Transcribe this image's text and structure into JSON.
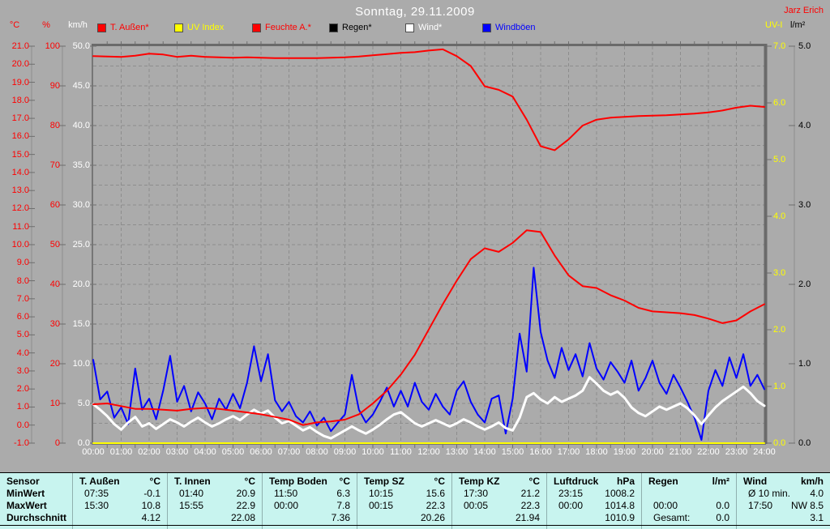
{
  "window": {
    "title": "Sonntag, 29.11.2009",
    "author": "Jarz Erich"
  },
  "colors": {
    "background": "#ababab",
    "grid": "#8d8d8d",
    "tick": "#6e6e6e",
    "border": "#767676",
    "border_dark": "#6a6a6a",
    "title": "#ffffff",
    "author": "#ff0000",
    "time_labels": "#ffffff",
    "table_bg": "#c8f4ef",
    "table_separator": "#8fb0ae"
  },
  "legend": [
    {
      "key": "temp_out",
      "label": "T. Außen*",
      "color": "#ff0000"
    },
    {
      "key": "uv",
      "label": "UV Index",
      "color": "#ffff00"
    },
    {
      "key": "humidity",
      "label": "Feuchte A.*",
      "color": "#ff0000"
    },
    {
      "key": "rain",
      "label": "Regen*",
      "color": "#000000"
    },
    {
      "key": "wind",
      "label": "Wind*",
      "color": "#ffffff"
    },
    {
      "key": "gusts",
      "label": "Windböen",
      "color": "#0000ff"
    }
  ],
  "chart_data": {
    "type": "line",
    "title": "Sonntag, 29.11.2009",
    "x_axis": {
      "unit": "h",
      "min": 0,
      "max": 24,
      "tick_step_hours": 1,
      "minor_tick_hours": 0.5
    },
    "grid": {
      "horizontal_divisions": 20,
      "vertical_per_hour": true,
      "style": "dashed"
    },
    "axes": {
      "left": [
        {
          "key": "temp",
          "unit": "°C",
          "color": "#ff0000",
          "min": -1,
          "max": 21,
          "ticks": [
            "21.0",
            "20.0",
            "19.0",
            "18.0",
            "17.0",
            "16.0",
            "15.0",
            "14.0",
            "13.0",
            "12.0",
            "11.0",
            "10.0",
            "9.0",
            "8.0",
            "7.0",
            "6.0",
            "5.0",
            "4.0",
            "3.0",
            "2.0",
            "1.0",
            "0.0",
            "-1.0"
          ]
        },
        {
          "key": "humidity",
          "unit": "%",
          "color": "#ff0000",
          "min": 0,
          "max": 100,
          "ticks": [
            "100",
            "90",
            "80",
            "70",
            "60",
            "50",
            "40",
            "30",
            "20",
            "10",
            "0"
          ]
        },
        {
          "key": "wind",
          "unit": "km/h",
          "color": "#ffffff",
          "min": 0,
          "max": 50,
          "ticks": [
            "50.0",
            "45.0",
            "40.0",
            "35.0",
            "30.0",
            "25.0",
            "20.0",
            "15.0",
            "10.0",
            "5.0",
            "0.0"
          ]
        }
      ],
      "right": [
        {
          "key": "uv",
          "unit": "UV-I",
          "color": "#ffff00",
          "min": 0,
          "max": 7,
          "ticks": [
            "7.0",
            "6.0",
            "5.0",
            "4.0",
            "3.0",
            "2.0",
            "1.0",
            "0.0"
          ]
        },
        {
          "key": "rain",
          "unit": "l/m²",
          "color": "#000000",
          "min": 0,
          "max": 5,
          "ticks": [
            "5.0",
            "4.0",
            "3.0",
            "2.0",
            "1.0",
            "0.0"
          ]
        }
      ],
      "time": {
        "labels": [
          "00:00",
          "01:00",
          "02:00",
          "03:00",
          "04:00",
          "05:00",
          "06:00",
          "07:00",
          "08:00",
          "09:00",
          "10:00",
          "11:00",
          "12:00",
          "13:00",
          "14:00",
          "15:00",
          "16:00",
          "17:00",
          "18:00",
          "19:00",
          "20:00",
          "21:00",
          "22:00",
          "23:00",
          "24:00"
        ]
      }
    },
    "series": [
      {
        "key": "rain",
        "name": "Regen",
        "axis": "rain",
        "color": "#000000",
        "width": 1,
        "z": 0,
        "t0": 0,
        "dt": 24,
        "values": [
          0,
          0
        ]
      },
      {
        "key": "gusts",
        "name": "Windböen",
        "axis": "wind",
        "color": "#0000ff",
        "width": 2,
        "z": 1,
        "t0": 0,
        "dt": 0.25,
        "values": [
          10.5,
          5.5,
          6.5,
          3.2,
          4.5,
          2.4,
          9.4,
          4.2,
          5.6,
          3.0,
          6.6,
          11.0,
          5.2,
          7.2,
          4.0,
          6.4,
          5.0,
          3.0,
          5.6,
          4.2,
          6.2,
          4.4,
          7.6,
          12.2,
          7.8,
          11.2,
          5.4,
          4.0,
          5.2,
          3.4,
          2.6,
          4.0,
          2.2,
          3.2,
          1.5,
          2.6,
          3.6,
          8.6,
          4.2,
          2.6,
          3.6,
          5.2,
          7.0,
          4.6,
          6.6,
          4.6,
          7.6,
          5.2,
          4.2,
          6.2,
          4.6,
          3.6,
          6.6,
          7.8,
          5.2,
          3.6,
          2.6,
          5.6,
          6.0,
          1.2,
          5.6,
          13.8,
          9.0,
          22.1,
          14.0,
          10.4,
          8.2,
          12.0,
          9.2,
          11.2,
          8.4,
          12.6,
          9.4,
          8.0,
          10.2,
          9.0,
          7.6,
          10.4,
          6.6,
          8.2,
          10.4,
          7.6,
          6.2,
          8.6,
          7.0,
          5.2,
          3.2,
          0.4,
          6.6,
          9.2,
          7.2,
          10.8,
          8.2,
          11.2,
          7.2,
          8.6,
          6.8
        ]
      },
      {
        "key": "uv",
        "name": "UV Index",
        "axis": "uv",
        "color": "#ffff00",
        "width": 2,
        "z": 2,
        "t0": 0,
        "dt": 24,
        "values": [
          0,
          0
        ]
      },
      {
        "key": "wind",
        "name": "Wind",
        "axis": "wind",
        "color": "#ffffff",
        "width": 3,
        "z": 3,
        "t0": 0,
        "dt": 0.25,
        "values": [
          4.9,
          4.2,
          3.4,
          2.4,
          1.7,
          2.6,
          3.3,
          2.1,
          2.5,
          1.8,
          2.4,
          3.0,
          2.6,
          2.1,
          2.7,
          3.2,
          2.6,
          2.1,
          2.5,
          3.0,
          3.4,
          2.9,
          3.6,
          4.2,
          3.7,
          4.1,
          3.2,
          2.5,
          2.8,
          2.2,
          1.6,
          2.0,
          1.4,
          0.9,
          0.6,
          1.1,
          1.6,
          2.1,
          1.6,
          1.2,
          1.7,
          2.3,
          3.0,
          3.6,
          3.9,
          3.2,
          2.5,
          2.1,
          2.5,
          2.9,
          2.5,
          2.1,
          2.5,
          3.0,
          2.6,
          2.1,
          1.7,
          2.1,
          2.6,
          1.9,
          1.6,
          3.2,
          5.8,
          6.3,
          5.5,
          5.0,
          5.8,
          5.2,
          5.6,
          6.0,
          6.6,
          8.3,
          7.5,
          6.6,
          6.1,
          6.5,
          5.7,
          4.5,
          3.8,
          3.4,
          4.0,
          4.6,
          4.2,
          4.6,
          5.0,
          4.4,
          3.5,
          2.4,
          3.5,
          4.5,
          5.3,
          5.9,
          6.5,
          7.1,
          6.3,
          5.3,
          4.7
        ]
      },
      {
        "key": "temp_out",
        "name": "T. Außen",
        "axis": "temp",
        "color": "#ff0000",
        "width": 2,
        "z": 4,
        "t0": 0,
        "dt": 0.5,
        "values": [
          1.15,
          1.2,
          1.05,
          0.9,
          0.9,
          0.85,
          0.8,
          0.9,
          0.95,
          0.9,
          0.8,
          0.7,
          0.6,
          0.45,
          0.3,
          0.0,
          0.15,
          0.2,
          0.3,
          0.6,
          1.2,
          1.9,
          2.8,
          3.9,
          5.3,
          6.7,
          8.0,
          9.2,
          9.8,
          9.6,
          10.1,
          10.8,
          10.7,
          9.4,
          8.3,
          7.7,
          7.6,
          7.2,
          6.9,
          6.5,
          6.3,
          6.25,
          6.2,
          6.1,
          5.9,
          5.65,
          5.8,
          6.3,
          6.7
        ]
      },
      {
        "key": "humidity",
        "name": "Feuchte A.",
        "axis": "humidity",
        "color": "#ff0000",
        "width": 2,
        "z": 5,
        "t0": 0,
        "dt": 0.5,
        "values": [
          97.5,
          97.4,
          97.3,
          97.6,
          98.1,
          97.9,
          97.3,
          97.6,
          97.3,
          97.2,
          97.1,
          97.2,
          97.1,
          97.0,
          97.0,
          97.0,
          97.0,
          97.1,
          97.2,
          97.4,
          97.7,
          98.0,
          98.3,
          98.5,
          98.9,
          99.2,
          97.5,
          95.0,
          89.9,
          89.0,
          87.3,
          81.5,
          74.8,
          73.8,
          76.5,
          80.0,
          81.5,
          82.0,
          82.2,
          82.4,
          82.5,
          82.6,
          82.8,
          83.0,
          83.3,
          83.8,
          84.5,
          85.0,
          84.7
        ]
      }
    ]
  },
  "table": {
    "corner_label": "Sensor",
    "row_labels": [
      "MinWert",
      "MaxWert",
      "Durchschnitt"
    ],
    "columns": [
      {
        "name": "T. Außen",
        "unit": "°C",
        "rows": [
          [
            "07:35",
            "-0.1"
          ],
          [
            "15:30",
            "10.8"
          ],
          [
            "",
            "4.12"
          ]
        ]
      },
      {
        "name": "T. Innen",
        "unit": "°C",
        "rows": [
          [
            "01:40",
            "20.9"
          ],
          [
            "15:55",
            "22.9"
          ],
          [
            "",
            "22.08"
          ]
        ]
      },
      {
        "name": "Temp Boden",
        "unit": "°C",
        "rows": [
          [
            "11:50",
            "6.3"
          ],
          [
            "00:00",
            "7.8"
          ],
          [
            "",
            "7.36"
          ]
        ]
      },
      {
        "name": "Temp SZ",
        "unit": "°C",
        "rows": [
          [
            "10:15",
            "15.6"
          ],
          [
            "00:15",
            "22.3"
          ],
          [
            "",
            "20.26"
          ]
        ]
      },
      {
        "name": "Temp KZ",
        "unit": "°C",
        "rows": [
          [
            "17:30",
            "21.2"
          ],
          [
            "00:05",
            "22.3"
          ],
          [
            "",
            "21.94"
          ]
        ]
      },
      {
        "name": "Luftdruck",
        "unit": "hPa",
        "rows": [
          [
            "23:15",
            "1008.2"
          ],
          [
            "00:00",
            "1014.8"
          ],
          [
            "",
            "1010.9"
          ]
        ]
      },
      {
        "name": "Regen",
        "unit": "l/m²",
        "rows": [
          [
            "",
            ""
          ],
          [
            "00:00",
            "0.0"
          ],
          [
            "Gesamt:",
            "0.0"
          ]
        ]
      },
      {
        "name": "Wind",
        "unit": "km/h",
        "rows": [
          [
            "Ø 10 min.",
            "4.0"
          ],
          [
            "17:50",
            "NW 8.5"
          ],
          [
            "",
            "3.1"
          ]
        ]
      }
    ]
  }
}
